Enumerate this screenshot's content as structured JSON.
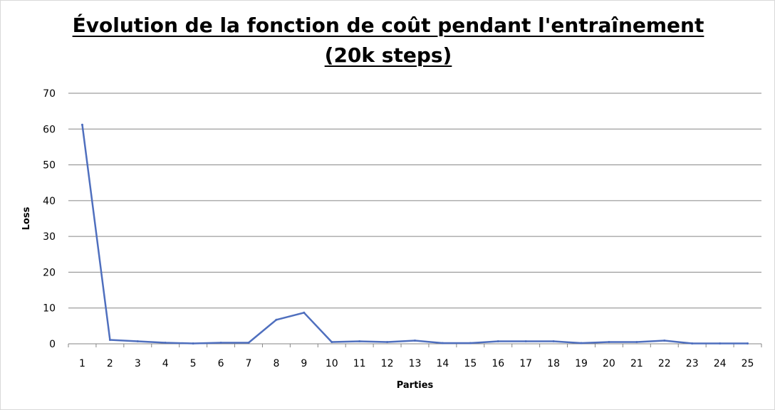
{
  "chart_data": {
    "type": "line",
    "title_line1": "Évolution de la fonction de coût pendant l'entraînement",
    "title_line2": "(20k steps)",
    "xlabel": "Parties",
    "ylabel": "Loss",
    "categories": [
      "1",
      "2",
      "3",
      "4",
      "5",
      "6",
      "7",
      "8",
      "9",
      "10",
      "11",
      "12",
      "13",
      "14",
      "15",
      "16",
      "17",
      "18",
      "19",
      "20",
      "21",
      "22",
      "23",
      "24",
      "25"
    ],
    "series": [
      {
        "values": [
          61.2,
          1.1,
          0.7,
          0.3,
          0.1,
          0.3,
          0.3,
          6.7,
          8.7,
          0.5,
          0.7,
          0.5,
          0.9,
          0.2,
          0.2,
          0.7,
          0.7,
          0.7,
          0.2,
          0.5,
          0.5,
          0.9,
          0.1,
          0.1,
          0.1
        ],
        "color": "#4f6fbe"
      }
    ],
    "ylim": [
      0,
      70
    ],
    "yticks": [
      0,
      10,
      20,
      30,
      40,
      50,
      60,
      70
    ],
    "grid": true,
    "legend": "none"
  }
}
